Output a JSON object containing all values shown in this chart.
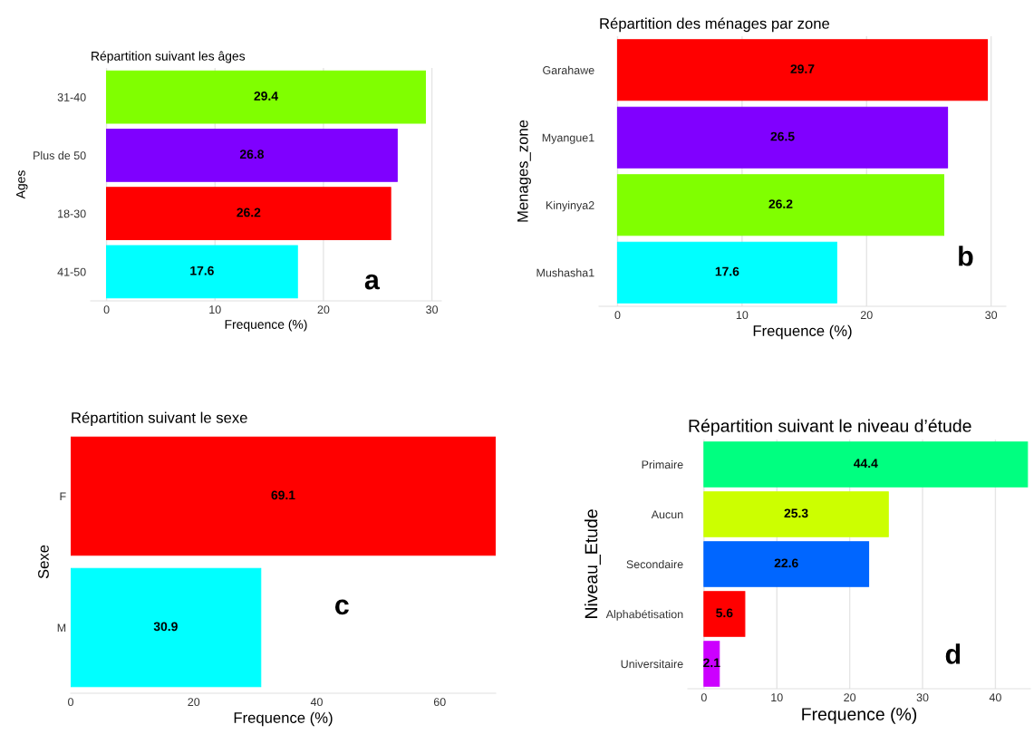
{
  "chart_data": [
    {
      "type": "bar",
      "orientation": "horizontal",
      "title": "Répartition suivant les âges",
      "xlabel": "Frequence (%)",
      "ylabel": "Ages",
      "categories": [
        "31-40",
        "Plus de 50",
        "18-30",
        "41-50"
      ],
      "values": [
        29.4,
        26.8,
        26.2,
        17.6
      ],
      "colors": [
        "#80ff00",
        "#7f00ff",
        "#ff0000",
        "#00ffff"
      ],
      "xlim": [
        -1.47,
        30.87
      ],
      "xticks": [
        0,
        10,
        20,
        30
      ],
      "grid": "x",
      "data_labels": true,
      "annotations": [
        "a"
      ]
    },
    {
      "type": "bar",
      "orientation": "horizontal",
      "title": "Répartition des ménages par zone",
      "xlabel": "Frequence (%)",
      "ylabel": "Menages_zone",
      "categories": [
        "Garahawe",
        "Myangue1",
        "Kinyinya2",
        "Mushasha1"
      ],
      "values": [
        29.7,
        26.5,
        26.2,
        17.6
      ],
      "colors": [
        "#ff0000",
        "#8000ff",
        "#80ff00",
        "#00ffff"
      ],
      "xlim": [
        -1.49,
        31.19
      ],
      "xticks": [
        0,
        10,
        20,
        30
      ],
      "grid": "x",
      "data_labels": true,
      "annotations": [
        "b"
      ]
    },
    {
      "type": "bar",
      "orientation": "horizontal",
      "title": "Répartition suivant le sexe",
      "xlabel": "Frequence (%)",
      "ylabel": "Sexe",
      "categories": [
        "F",
        "M"
      ],
      "values": [
        69.1,
        30.9
      ],
      "colors": [
        "#ff0000",
        "#00ffff"
      ],
      "xlim": [
        0,
        69.1
      ],
      "xticks": [
        0,
        20,
        40,
        60
      ],
      "data_labels": true,
      "annotations": [
        "c"
      ]
    },
    {
      "type": "bar",
      "orientation": "horizontal",
      "title": "Répartition suivant le niveau d’étude",
      "xlabel": "Frequence (%)",
      "ylabel": "Niveau_Etude",
      "categories": [
        "Primaire",
        "Aucun",
        "Secondaire",
        "Alphabétisation",
        "Universitaire"
      ],
      "values": [
        44.4,
        25.3,
        22.6,
        5.6,
        2.1
      ],
      "colors": [
        "#00ff80",
        "#ccff00",
        "#0066ff",
        "#ff0000",
        "#cc00ff"
      ],
      "xlim": [
        -2.22,
        44.8
      ],
      "xticks": [
        0,
        10,
        20,
        30,
        40
      ],
      "grid": "x",
      "data_labels": true,
      "annotations": [
        "d"
      ]
    }
  ]
}
